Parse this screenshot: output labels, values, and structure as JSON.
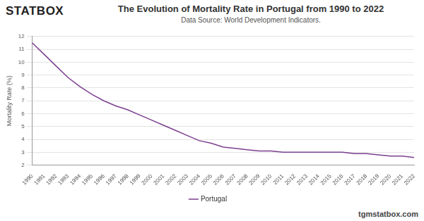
{
  "chart_data": {
    "type": "line",
    "title": "The Evolution of Mortality Rate in Portugal from 1990 to 2022",
    "subtitle": "Data Source: World Development Indicators.",
    "annotations": [
      "STATBOX",
      "tgmstatbox.com"
    ],
    "y_label": "Mortality Rate (%)",
    "categories": [
      "1990",
      "1991",
      "1992",
      "1993",
      "1994",
      "1995",
      "1996",
      "1997",
      "1998",
      "1999",
      "2000",
      "2001",
      "2002",
      "2003",
      "2004",
      "2005",
      "2006",
      "2007",
      "2008",
      "2009",
      "2010",
      "2011",
      "2012",
      "2013",
      "2014",
      "2015",
      "2016",
      "2017",
      "2018",
      "2019",
      "2020",
      "2021",
      "2022"
    ],
    "series": [
      {
        "name": "Portugal",
        "color": "#7b3f8f",
        "marker": "none",
        "line_style": "solid",
        "values": [
          11.5,
          10.6,
          9.7,
          8.8,
          8.1,
          7.5,
          7.0,
          6.6,
          6.3,
          5.9,
          5.5,
          5.1,
          4.7,
          4.3,
          3.9,
          3.7,
          3.4,
          3.3,
          3.2,
          3.1,
          3.1,
          3.0,
          3.0,
          3.0,
          3.0,
          3.0,
          3.0,
          2.9,
          2.9,
          2.8,
          2.7,
          2.7,
          2.6
        ]
      }
    ],
    "ylim": [
      2,
      12
    ],
    "yticks": [
      2,
      3,
      4,
      5,
      6,
      7,
      8,
      9,
      10,
      11,
      12
    ],
    "grid": true,
    "legend": "bottom"
  }
}
